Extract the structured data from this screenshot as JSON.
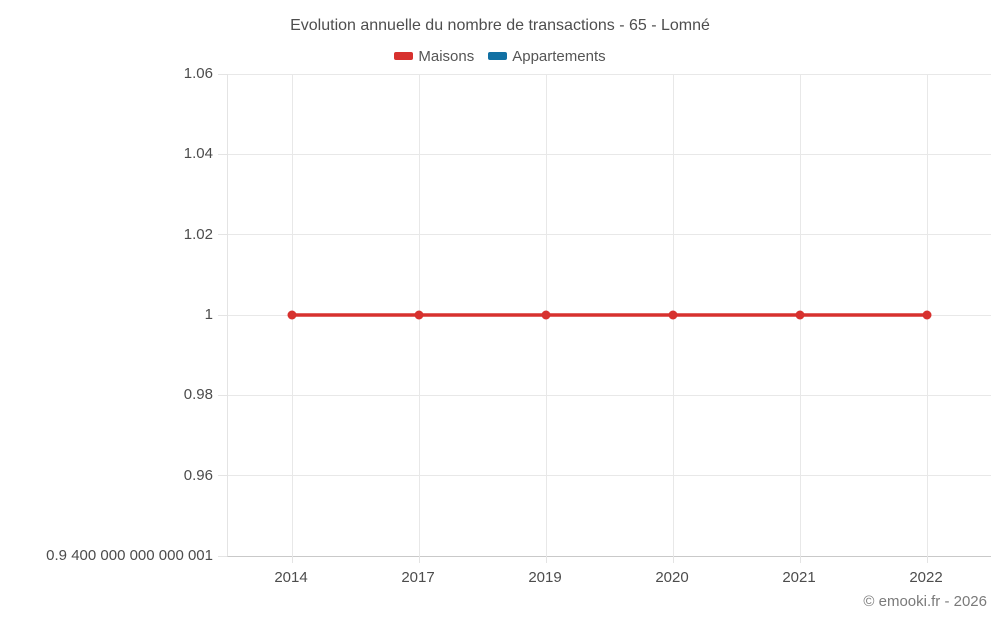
{
  "footer": {
    "text": "© emooki.fr - 2026"
  },
  "chart_data": {
    "type": "line",
    "title": "Evolution annuelle du nombre de transactions - 65 - Lomné",
    "x": [
      "2014",
      "2017",
      "2019",
      "2020",
      "2021",
      "2022"
    ],
    "series": [
      {
        "name": "Maisons",
        "color": "#d7312e",
        "values": [
          1,
          1,
          1,
          1,
          1,
          1
        ]
      },
      {
        "name": "Appartements",
        "color": "#1170a3",
        "values": []
      }
    ],
    "ylim": [
      0.94,
      1.06
    ],
    "yticks": [
      {
        "value": 1.06,
        "label": "1.06"
      },
      {
        "value": 1.04,
        "label": "1.04"
      },
      {
        "value": 1.02,
        "label": "1.02"
      },
      {
        "value": 1.0,
        "label": "1"
      },
      {
        "value": 0.98,
        "label": "0.98"
      },
      {
        "value": 0.96,
        "label": "0.96"
      },
      {
        "value": 0.94,
        "label": "0.9 400 000 000 000 001"
      }
    ],
    "grid": true,
    "legend_position": "top"
  }
}
